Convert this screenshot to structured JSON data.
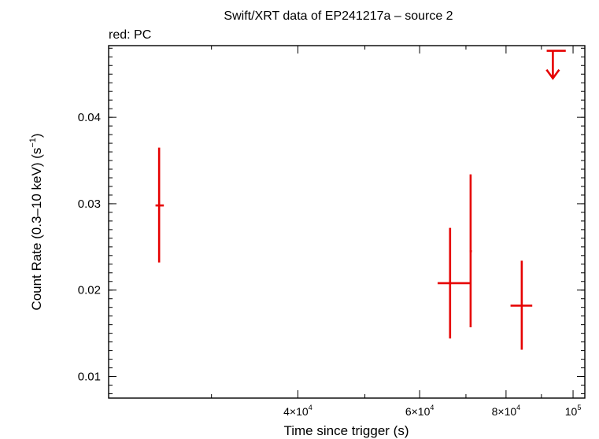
{
  "chart_data": {
    "type": "scatter",
    "title": "Swift/XRT data of EP241217a – source 2",
    "subtitle": "red: PC",
    "xlabel": "Time since trigger (s)",
    "ylabel_main": "Count Rate (0.3–10 keV) (s",
    "ylabel_sup": "−1",
    "ylabel_close": ")",
    "x_scale": "log",
    "xlim": [
      21300,
      104000
    ],
    "ylim": [
      0.0075,
      0.0483
    ],
    "grid": false,
    "legend": "none",
    "x_ticks": [
      {
        "value": 40000,
        "mantissa": "4×10",
        "exp": "4"
      },
      {
        "value": 60000,
        "mantissa": "6×10",
        "exp": "4"
      },
      {
        "value": 80000,
        "mantissa": "8×10",
        "exp": "4"
      },
      {
        "value": 100000,
        "mantissa": "10",
        "exp": "5"
      }
    ],
    "y_ticks": [
      {
        "value": 0.01,
        "label": "0.01"
      },
      {
        "value": 0.02,
        "label": "0.02"
      },
      {
        "value": 0.03,
        "label": "0.03"
      },
      {
        "value": 0.04,
        "label": "0.04"
      }
    ],
    "series": [
      {
        "color": "#e60000",
        "points": [
          {
            "x": 25200,
            "x_lo": 24900,
            "x_hi": 25600,
            "y": 0.0298,
            "y_lo": 0.0232,
            "y_hi": 0.0365
          },
          {
            "x": 66400,
            "x_lo": 63700,
            "x_hi": 70900,
            "y": 0.0208,
            "y_lo": 0.0144,
            "y_hi": 0.0272
          },
          {
            "x": 71100,
            "x_lo": 70900,
            "x_hi": 71400,
            "y": 0.0245,
            "y_lo": 0.0157,
            "y_hi": 0.0334
          },
          {
            "x": 84300,
            "x_lo": 81200,
            "x_hi": 87300,
            "y": 0.0182,
            "y_lo": 0.0131,
            "y_hi": 0.0234
          }
        ],
        "upper_limits": [
          {
            "x": 93500,
            "x_lo": 91600,
            "x_hi": 97600,
            "y": 0.0477
          }
        ]
      }
    ]
  }
}
